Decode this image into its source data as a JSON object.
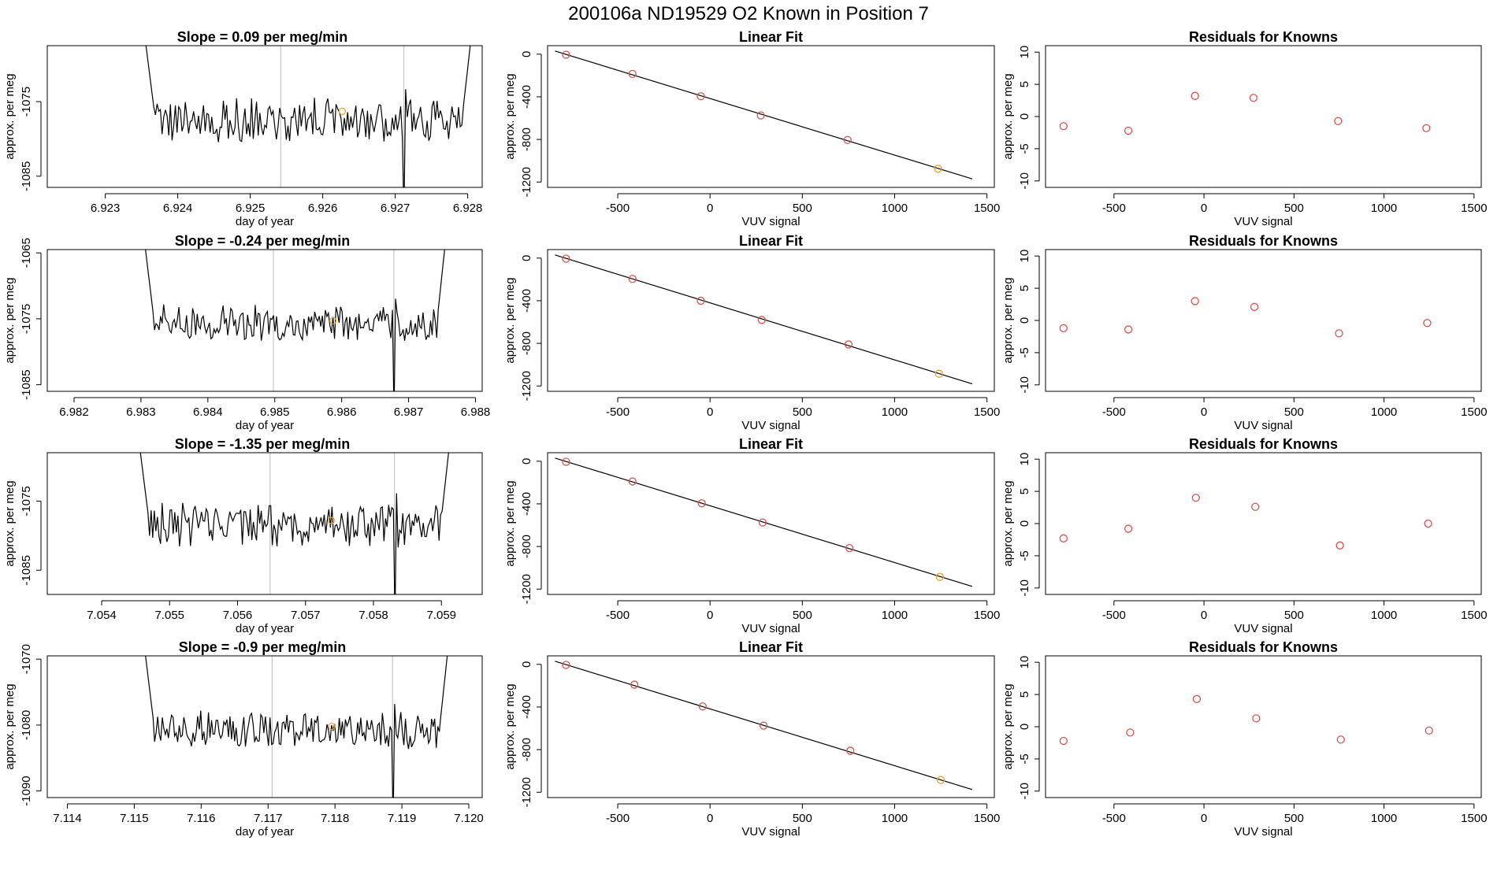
{
  "page_title": "200106a     ND19529   O2 Known in Position  7",
  "colors": {
    "line": "#000000",
    "point": "#d9534f",
    "highlight": "#f0a030",
    "vline": "#bbbbbb",
    "frame": "#000000"
  },
  "chart_data": [
    {
      "row": 1,
      "panels": [
        {
          "type": "line",
          "title": "Slope =  0.09  per meg/min",
          "xlabel": "day of year",
          "ylabel": "approx. per meg",
          "xlim": [
            6.9222,
            6.9282
          ],
          "ylim": [
            -1086.5,
            -1067.5
          ],
          "xticks": [
            6.923,
            6.924,
            6.925,
            6.926,
            6.927,
            6.928
          ],
          "xtick_labels": [
            "6.923",
            "6.924",
            "6.925",
            "6.926",
            "6.927",
            "6.928"
          ],
          "yticks": [
            -1085,
            -1075
          ],
          "ytick_labels": [
            "-1085",
            "-1075"
          ],
          "series_start": 6.92351,
          "series_end": 6.92808,
          "baseline": -1077.5,
          "noise_amp": 2.6,
          "vlines": [
            6.92542,
            6.92712
          ],
          "highlight": {
            "x": 6.92627,
            "y": -1076.3
          }
        },
        {
          "type": "scatter",
          "title": "Linear Fit",
          "xlabel": "VUV signal",
          "ylabel": "approx. per meg",
          "xlim": [
            -880,
            1540
          ],
          "ylim": [
            -1250,
            80
          ],
          "xticks": [
            -500,
            0,
            500,
            1000,
            1500
          ],
          "xtick_labels": [
            "-500",
            "0",
            "500",
            "1000",
            "1500"
          ],
          "yticks": [
            0,
            -400,
            -800,
            -1200
          ],
          "ytick_labels": [
            "0",
            "-400",
            "-800",
            "-1200"
          ],
          "points": [
            {
              "x": -780,
              "y": -5
            },
            {
              "x": -420,
              "y": -185
            },
            {
              "x": -50,
              "y": -395
            },
            {
              "x": 275,
              "y": -575
            },
            {
              "x": 745,
              "y": -805
            },
            {
              "x": 1235,
              "y": -1075
            }
          ],
          "fit_line": {
            "x0": -840,
            "y0": 30,
            "x1": 1420,
            "y1": -1170
          },
          "highlight_index": 5
        },
        {
          "type": "scatter",
          "title": "Residuals for Knowns",
          "xlabel": "VUV signal",
          "ylabel": "approx. per meg",
          "xlim": [
            -880,
            1540
          ],
          "ylim": [
            -11,
            11
          ],
          "xticks": [
            -500,
            0,
            500,
            1000,
            1500
          ],
          "xtick_labels": [
            "-500",
            "0",
            "500",
            "1000",
            "1500"
          ],
          "yticks": [
            10,
            5,
            0,
            -5,
            -10
          ],
          "ytick_labels": [
            "10",
            "5",
            "0",
            "-5",
            "-10"
          ],
          "points": [
            {
              "x": -780,
              "y": -1.5
            },
            {
              "x": -420,
              "y": -2.2
            },
            {
              "x": -50,
              "y": 3.2
            },
            {
              "x": 275,
              "y": 2.9
            },
            {
              "x": 745,
              "y": -0.7
            },
            {
              "x": 1235,
              "y": -1.8
            }
          ]
        }
      ]
    },
    {
      "row": 2,
      "panels": [
        {
          "type": "line",
          "title": "Slope =  -0.24  per meg/min",
          "xlabel": "day of year",
          "ylabel": "approx. per meg",
          "xlim": [
            6.9816,
            6.9881
          ],
          "ylim": [
            -1086,
            -1064.5
          ],
          "xticks": [
            6.982,
            6.983,
            6.984,
            6.985,
            6.986,
            6.987,
            6.988
          ],
          "xtick_labels": [
            "6.982",
            "6.983",
            "6.984",
            "6.985",
            "6.986",
            "6.987",
            "6.988"
          ],
          "yticks": [
            -1065,
            -1075,
            -1085
          ],
          "ytick_labels": [
            "-1065",
            "-1075",
            "-1085"
          ],
          "series_start": 6.98302,
          "series_end": 6.98758,
          "baseline": -1075.8,
          "noise_amp": 2.4,
          "vlines": [
            6.98498,
            6.98678
          ],
          "highlight": {
            "x": 6.98587,
            "y": -1075.3
          }
        },
        {
          "type": "scatter",
          "title": "Linear Fit",
          "xlabel": "VUV signal",
          "ylabel": "approx. per meg",
          "xlim": [
            -880,
            1540
          ],
          "ylim": [
            -1250,
            80
          ],
          "xticks": [
            -500,
            0,
            500,
            1000,
            1500
          ],
          "xtick_labels": [
            "-500",
            "0",
            "500",
            "1000",
            "1500"
          ],
          "yticks": [
            0,
            -400,
            -800,
            -1200
          ],
          "ytick_labels": [
            "0",
            "-400",
            "-800",
            "-1200"
          ],
          "points": [
            {
              "x": -780,
              "y": -5
            },
            {
              "x": -420,
              "y": -195
            },
            {
              "x": -50,
              "y": -400
            },
            {
              "x": 280,
              "y": -580
            },
            {
              "x": 750,
              "y": -810
            },
            {
              "x": 1240,
              "y": -1085
            }
          ],
          "fit_line": {
            "x0": -840,
            "y0": 30,
            "x1": 1420,
            "y1": -1180
          },
          "highlight_index": 5
        },
        {
          "type": "scatter",
          "title": "Residuals for Knowns",
          "xlabel": "VUV signal",
          "ylabel": "approx. per meg",
          "xlim": [
            -880,
            1540
          ],
          "ylim": [
            -11,
            11
          ],
          "xticks": [
            -500,
            0,
            500,
            1000,
            1500
          ],
          "xtick_labels": [
            "-500",
            "0",
            "500",
            "1000",
            "1500"
          ],
          "yticks": [
            10,
            5,
            0,
            -5,
            -10
          ],
          "ytick_labels": [
            "10",
            "5",
            "0",
            "-5",
            "-10"
          ],
          "points": [
            {
              "x": -780,
              "y": -1.2
            },
            {
              "x": -420,
              "y": -1.4
            },
            {
              "x": -50,
              "y": 3.0
            },
            {
              "x": 280,
              "y": 2.1
            },
            {
              "x": 750,
              "y": -2.0
            },
            {
              "x": 1240,
              "y": -0.4
            }
          ]
        }
      ]
    },
    {
      "row": 3,
      "panels": [
        {
          "type": "line",
          "title": "Slope =  -1.35  per meg/min",
          "xlabel": "day of year",
          "ylabel": "approx. per meg",
          "xlim": [
            7.0532,
            7.0596
          ],
          "ylim": [
            -1088.5,
            -1068
          ],
          "xticks": [
            7.054,
            7.055,
            7.056,
            7.057,
            7.058,
            7.059
          ],
          "xtick_labels": [
            "7.054",
            "7.055",
            "7.056",
            "7.057",
            "7.058",
            "7.059"
          ],
          "yticks": [
            -1075,
            -1085
          ],
          "ytick_labels": [
            "-1075",
            "-1085"
          ],
          "series_start": 7.05452,
          "series_end": 7.05915,
          "baseline": -1078.5,
          "noise_amp": 2.9,
          "vlines": [
            7.05648,
            7.05831
          ],
          "highlight": {
            "x": 7.05738,
            "y": -1077.8
          }
        },
        {
          "type": "scatter",
          "title": "Linear Fit",
          "xlabel": "VUV signal",
          "ylabel": "approx. per meg",
          "xlim": [
            -880,
            1540
          ],
          "ylim": [
            -1250,
            80
          ],
          "xticks": [
            -500,
            0,
            500,
            1000,
            1500
          ],
          "xtick_labels": [
            "-500",
            "0",
            "500",
            "1000",
            "1500"
          ],
          "yticks": [
            0,
            -400,
            -800,
            -1200
          ],
          "ytick_labels": [
            "0",
            "-400",
            "-800",
            "-1200"
          ],
          "points": [
            {
              "x": -780,
              "y": -5
            },
            {
              "x": -420,
              "y": -190
            },
            {
              "x": -45,
              "y": -395
            },
            {
              "x": 285,
              "y": -575
            },
            {
              "x": 755,
              "y": -815
            },
            {
              "x": 1245,
              "y": -1085
            }
          ],
          "fit_line": {
            "x0": -840,
            "y0": 30,
            "x1": 1420,
            "y1": -1175
          },
          "highlight_index": 5
        },
        {
          "type": "scatter",
          "title": "Residuals for Knowns",
          "xlabel": "VUV signal",
          "ylabel": "approx. per meg",
          "xlim": [
            -880,
            1540
          ],
          "ylim": [
            -11,
            11
          ],
          "xticks": [
            -500,
            0,
            500,
            1000,
            1500
          ],
          "xtick_labels": [
            "-500",
            "0",
            "500",
            "1000",
            "1500"
          ],
          "yticks": [
            10,
            5,
            0,
            -5,
            -10
          ],
          "ytick_labels": [
            "10",
            "5",
            "0",
            "-5",
            "-10"
          ],
          "points": [
            {
              "x": -780,
              "y": -2.3
            },
            {
              "x": -420,
              "y": -0.8
            },
            {
              "x": -45,
              "y": 4.0
            },
            {
              "x": 285,
              "y": 2.6
            },
            {
              "x": 755,
              "y": -3.4
            },
            {
              "x": 1245,
              "y": 0.0
            }
          ]
        }
      ]
    },
    {
      "row": 4,
      "panels": [
        {
          "type": "line",
          "title": "Slope =  -0.9  per meg/min",
          "xlabel": "day of year",
          "ylabel": "approx. per meg",
          "xlim": [
            7.1137,
            7.1202
          ],
          "ylim": [
            -1091,
            -1069.5
          ],
          "xticks": [
            7.114,
            7.115,
            7.116,
            7.117,
            7.118,
            7.119,
            7.12
          ],
          "xtick_labels": [
            "7.114",
            "7.115",
            "7.116",
            "7.117",
            "7.118",
            "7.119",
            "7.120"
          ],
          "yticks": [
            -1070,
            -1080,
            -1090
          ],
          "ytick_labels": [
            "-1070",
            "-1080",
            "-1090"
          ],
          "series_start": 7.11512,
          "series_end": 7.11972,
          "baseline": -1080.8,
          "noise_amp": 2.5,
          "vlines": [
            7.11706,
            7.11886
          ],
          "highlight": {
            "x": 7.11795,
            "y": -1080.2
          }
        },
        {
          "type": "scatter",
          "title": "Linear Fit",
          "xlabel": "VUV signal",
          "ylabel": "approx. per meg",
          "xlim": [
            -880,
            1540
          ],
          "ylim": [
            -1250,
            80
          ],
          "xticks": [
            -500,
            0,
            500,
            1000,
            1500
          ],
          "xtick_labels": [
            "-500",
            "0",
            "500",
            "1000",
            "1500"
          ],
          "yticks": [
            0,
            -400,
            -800,
            -1200
          ],
          "ytick_labels": [
            "0",
            "-400",
            "-800",
            "-1200"
          ],
          "points": [
            {
              "x": -780,
              "y": -5
            },
            {
              "x": -410,
              "y": -190
            },
            {
              "x": -40,
              "y": -395
            },
            {
              "x": 290,
              "y": -575
            },
            {
              "x": 760,
              "y": -810
            },
            {
              "x": 1250,
              "y": -1085
            }
          ],
          "fit_line": {
            "x0": -840,
            "y0": 30,
            "x1": 1420,
            "y1": -1175
          },
          "highlight_index": 5
        },
        {
          "type": "scatter",
          "title": "Residuals for Knowns",
          "xlabel": "VUV signal",
          "ylabel": "approx. per meg",
          "xlim": [
            -880,
            1540
          ],
          "ylim": [
            -11,
            11
          ],
          "xticks": [
            -500,
            0,
            500,
            1000,
            1500
          ],
          "xtick_labels": [
            "-500",
            "0",
            "500",
            "1000",
            "1500"
          ],
          "yticks": [
            10,
            5,
            0,
            -5,
            -10
          ],
          "ytick_labels": [
            "10",
            "5",
            "0",
            "-5",
            "-10"
          ],
          "points": [
            {
              "x": -780,
              "y": -2.2
            },
            {
              "x": -410,
              "y": -0.9
            },
            {
              "x": -40,
              "y": 4.3
            },
            {
              "x": 290,
              "y": 1.3
            },
            {
              "x": 760,
              "y": -2.0
            },
            {
              "x": 1250,
              "y": -0.6
            }
          ]
        }
      ]
    }
  ]
}
